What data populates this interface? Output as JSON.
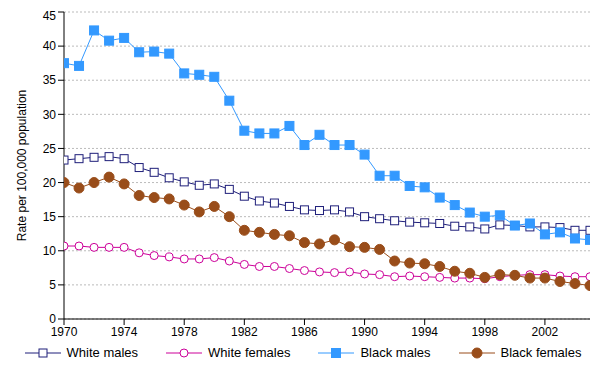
{
  "chart_data": {
    "type": "line",
    "ylabel": "Rate per 100,000 population",
    "x": [
      1970,
      1971,
      1972,
      1973,
      1974,
      1975,
      1976,
      1977,
      1978,
      1979,
      1980,
      1981,
      1982,
      1983,
      1984,
      1985,
      1986,
      1987,
      1988,
      1989,
      1990,
      1991,
      1992,
      1993,
      1994,
      1995,
      1996,
      1997,
      1998,
      1999,
      2000,
      2001,
      2002,
      2003,
      2004,
      2005
    ],
    "xlim": [
      1970,
      2005
    ],
    "xticks": [
      1970,
      1974,
      1978,
      1982,
      1986,
      1990,
      1994,
      1998,
      2002
    ],
    "ylim": [
      0,
      45
    ],
    "yticks": [
      0,
      5,
      10,
      15,
      20,
      25,
      30,
      35,
      40,
      45
    ],
    "grid": true,
    "legend": "bottom",
    "series": [
      {
        "name": "White males",
        "color": "#1f1f7a",
        "marker": "open-square",
        "values": [
          23.3,
          23.5,
          23.7,
          23.8,
          23.5,
          22.2,
          21.5,
          20.7,
          20.1,
          19.6,
          19.8,
          19.0,
          18.0,
          17.3,
          17.0,
          16.5,
          16.0,
          15.9,
          16.0,
          15.7,
          15.0,
          14.7,
          14.4,
          14.2,
          14.1,
          14.0,
          13.6,
          13.5,
          13.2,
          13.8,
          13.7,
          13.5,
          13.5,
          13.4,
          13.0,
          13.0
        ]
      },
      {
        "name": "White females",
        "color": "#cc0099",
        "marker": "open-circle",
        "values": [
          10.7,
          10.7,
          10.5,
          10.5,
          10.5,
          9.7,
          9.3,
          9.1,
          8.8,
          8.8,
          9.0,
          8.5,
          8.0,
          7.7,
          7.7,
          7.4,
          7.1,
          6.9,
          6.8,
          6.9,
          6.6,
          6.5,
          6.2,
          6.3,
          6.2,
          6.1,
          6.0,
          6.0,
          5.9,
          6.2,
          6.4,
          6.5,
          6.5,
          6.3,
          6.2,
          6.2
        ]
      },
      {
        "name": "Black males",
        "color": "#3399ff",
        "marker": "square",
        "values": [
          37.5,
          37.1,
          42.3,
          40.8,
          41.2,
          39.1,
          39.2,
          38.9,
          36.0,
          35.8,
          35.5,
          32.0,
          27.6,
          27.2,
          27.2,
          28.3,
          25.5,
          27.0,
          25.5,
          25.5,
          24.1,
          21.0,
          21.0,
          19.5,
          19.3,
          17.8,
          16.7,
          15.6,
          15.0,
          15.2,
          13.7,
          14.0,
          12.4,
          12.7,
          11.8,
          11.6
        ]
      },
      {
        "name": "Black females",
        "color": "#994d1a",
        "marker": "circle",
        "values": [
          20.0,
          19.2,
          20.0,
          20.8,
          19.8,
          18.1,
          17.8,
          17.6,
          16.7,
          15.7,
          16.5,
          15.0,
          13.0,
          12.7,
          12.4,
          12.2,
          11.2,
          11.0,
          11.6,
          10.6,
          10.5,
          10.2,
          8.5,
          8.2,
          8.1,
          7.7,
          7.0,
          6.7,
          6.1,
          6.5,
          6.4,
          6.0,
          6.0,
          5.5,
          5.2,
          4.9
        ]
      }
    ]
  }
}
